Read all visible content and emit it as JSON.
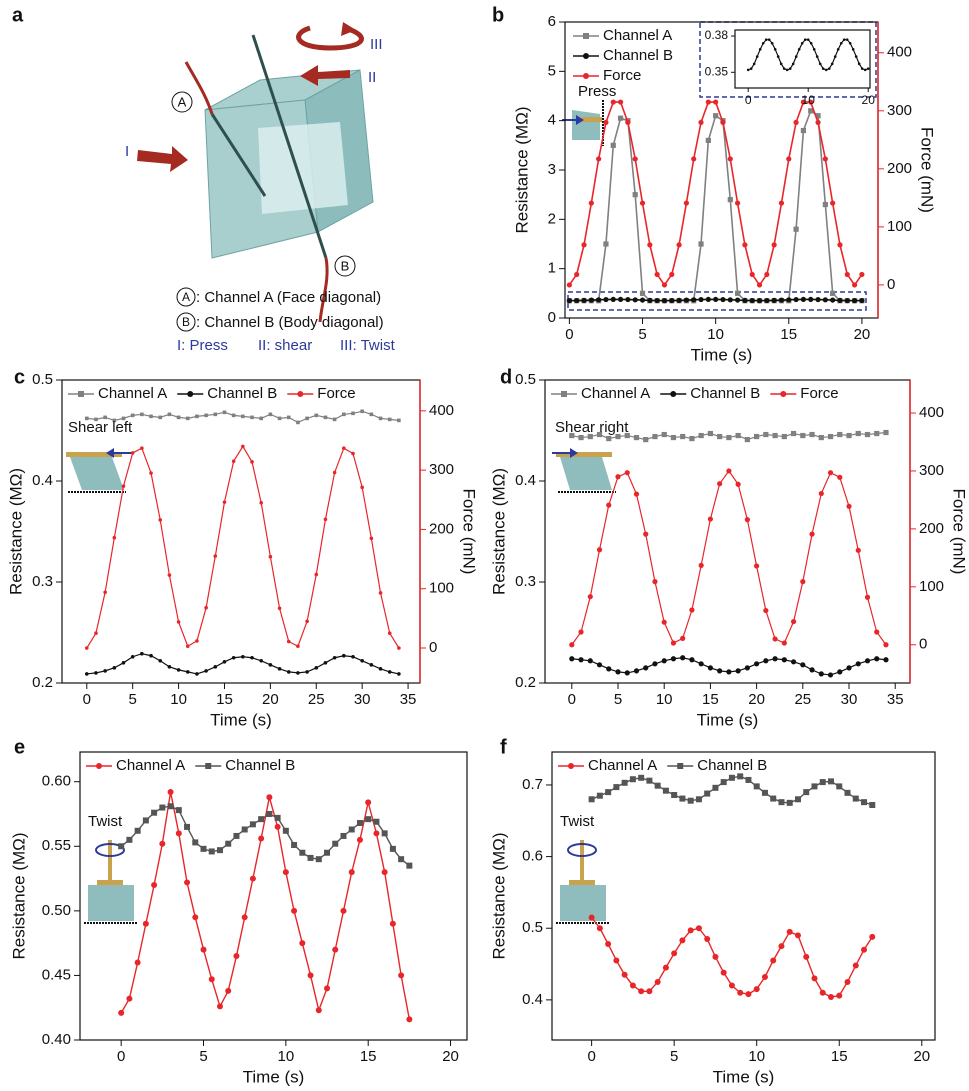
{
  "diagram": {
    "panel": "a",
    "arrows": [
      "I",
      "II",
      "III"
    ],
    "channels": [
      {
        "symbol": "A",
        "text": ": Channel A (Face diagonal)"
      },
      {
        "symbol": "B",
        "text": ": Channel B (Body diagonal)"
      }
    ],
    "modes": [
      "I: Press",
      "II: shear",
      "III: Twist"
    ]
  },
  "chart_data": [
    {
      "panel": "b",
      "type": "line",
      "xlabel": "Time (s)",
      "ylabel": "Resistance (MΩ)",
      "y2label": "Force (mN)",
      "annotation": "Press",
      "legend": "upper left",
      "xlim": [
        -0.3,
        21.1
      ],
      "ylim": [
        0,
        6
      ],
      "y2lim": [
        -57,
        453
      ],
      "xticks": [
        0,
        5,
        10,
        15,
        20
      ],
      "yticks": [
        0,
        1,
        2,
        3,
        4,
        5,
        6
      ],
      "y2ticks": [
        0,
        100,
        200,
        300,
        400
      ],
      "x": [
        0,
        0.5,
        1,
        1.5,
        2,
        2.5,
        3,
        3.5,
        4,
        4.5,
        5,
        5.5,
        6,
        6.5,
        7,
        7.5,
        8,
        8.5,
        9,
        9.5,
        10,
        10.5,
        11,
        11.5,
        12,
        12.5,
        13,
        13.5,
        14,
        14.5,
        15,
        15.5,
        16,
        16.5,
        17,
        17.5,
        18,
        18.5,
        19,
        19.5,
        20
      ],
      "series": [
        {
          "name": "Channel A",
          "color": "#808080",
          "marker": "square",
          "values": [
            0.35,
            0.35,
            0.35,
            0.35,
            0.35,
            1.5,
            3.5,
            4.05,
            4.0,
            2.5,
            0.5,
            0.35,
            0.35,
            0.35,
            0.35,
            0.35,
            0.35,
            0.35,
            1.5,
            3.6,
            4.1,
            4.0,
            2.4,
            0.5,
            0.35,
            0.35,
            0.35,
            0.35,
            0.35,
            0.35,
            0.35,
            1.8,
            3.8,
            4.2,
            4.1,
            2.3,
            0.5,
            0.35,
            0.35,
            0.35,
            0.35
          ]
        },
        {
          "name": "Channel B",
          "color": "#111111",
          "marker": "circle",
          "values": [
            0.352,
            0.353,
            0.357,
            0.363,
            0.369,
            0.374,
            0.377,
            0.377,
            0.374,
            0.369,
            0.363,
            0.357,
            0.353,
            0.352,
            0.353,
            0.357,
            0.363,
            0.369,
            0.374,
            0.377,
            0.377,
            0.374,
            0.369,
            0.363,
            0.357,
            0.353,
            0.352,
            0.353,
            0.357,
            0.363,
            0.369,
            0.374,
            0.377,
            0.377,
            0.374,
            0.369,
            0.363,
            0.357,
            0.353,
            0.352,
            0.353
          ]
        },
        {
          "name": "Force",
          "color": "#e8262a",
          "marker": "circle",
          "axis": "y2",
          "values": [
            0,
            18,
            69,
            141,
            217,
            280,
            315,
            315,
            280,
            217,
            141,
            69,
            18,
            0,
            18,
            69,
            141,
            217,
            280,
            315,
            315,
            280,
            217,
            141,
            69,
            18,
            0,
            18,
            69,
            141,
            217,
            280,
            315,
            315,
            280,
            217,
            141,
            69,
            18,
            0,
            18
          ]
        }
      ]
    },
    {
      "type": "line",
      "xlim": [
        -2.2,
        20.3
      ],
      "ylim": [
        0.337,
        0.385
      ],
      "xticks": [
        0,
        10,
        20
      ],
      "yticks": [
        0.35,
        0.38
      ],
      "x": [
        0,
        0.5,
        1,
        1.5,
        2,
        2.5,
        3,
        3.5,
        4,
        4.5,
        5,
        5.5,
        6,
        6.5,
        7,
        7.5,
        8,
        8.5,
        9,
        9.5,
        10,
        10.5,
        11,
        11.5,
        12,
        12.5,
        13,
        13.5,
        14,
        14.5,
        15,
        15.5,
        16,
        16.5,
        17,
        17.5,
        18,
        18.5,
        19,
        19.5,
        20
      ],
      "series": [
        {
          "color": "#111111",
          "marker": "circle",
          "values": [
            0.352,
            0.353,
            0.357,
            0.363,
            0.369,
            0.374,
            0.377,
            0.377,
            0.374,
            0.369,
            0.363,
            0.357,
            0.353,
            0.352,
            0.353,
            0.357,
            0.363,
            0.369,
            0.374,
            0.377,
            0.377,
            0.374,
            0.369,
            0.363,
            0.357,
            0.353,
            0.352,
            0.353,
            0.357,
            0.363,
            0.369,
            0.374,
            0.377,
            0.377,
            0.374,
            0.369,
            0.363,
            0.357,
            0.353,
            0.352,
            0.353
          ]
        }
      ]
    },
    {
      "panel": "c",
      "type": "line",
      "xlabel": "Time (s)",
      "ylabel": "Resistance (MΩ)",
      "y2label": "Force (mN)",
      "annotation": "Shear left",
      "legend": "top",
      "xlim": [
        -2.7,
        36.3
      ],
      "ylim": [
        0.2,
        0.5
      ],
      "y2lim": [
        -59,
        452
      ],
      "xticks": [
        0,
        5,
        10,
        15,
        20,
        25,
        30,
        35
      ],
      "yticks": [
        0.2,
        0.3,
        0.4,
        0.5
      ],
      "y2ticks": [
        0,
        100,
        200,
        300,
        400
      ],
      "x": [
        0,
        1,
        2,
        3,
        4,
        5,
        6,
        7,
        8,
        9,
        10,
        11,
        12,
        13,
        14,
        15,
        16,
        17,
        18,
        19,
        20,
        21,
        22,
        23,
        24,
        25,
        26,
        27,
        28,
        29,
        30,
        31,
        32,
        33,
        34
      ],
      "series": [
        {
          "name": "Channel A",
          "color": "#808080",
          "marker": "square",
          "values": [
            0.462,
            0.461,
            0.463,
            0.46,
            0.462,
            0.465,
            0.466,
            0.464,
            0.463,
            0.466,
            0.463,
            0.462,
            0.464,
            0.465,
            0.466,
            0.468,
            0.465,
            0.464,
            0.463,
            0.462,
            0.466,
            0.462,
            0.463,
            0.458,
            0.462,
            0.465,
            0.463,
            0.461,
            0.466,
            0.467,
            0.469,
            0.466,
            0.462,
            0.461,
            0.46
          ]
        },
        {
          "name": "Channel B",
          "color": "#111111",
          "marker": "circle",
          "values": [
            0.209,
            0.21,
            0.212,
            0.215,
            0.22,
            0.226,
            0.229,
            0.227,
            0.222,
            0.216,
            0.213,
            0.211,
            0.209,
            0.212,
            0.216,
            0.221,
            0.225,
            0.226,
            0.225,
            0.222,
            0.218,
            0.214,
            0.211,
            0.21,
            0.211,
            0.215,
            0.22,
            0.225,
            0.227,
            0.226,
            0.222,
            0.218,
            0.214,
            0.211,
            0.209
          ]
        },
        {
          "name": "Force",
          "color": "#e8262a",
          "marker": "circle",
          "axis": "y2",
          "values": [
            0,
            25,
            94,
            186,
            273,
            329,
            337,
            295,
            216,
            123,
            44,
            3,
            12,
            68,
            155,
            246,
            315,
            340,
            314,
            245,
            154,
            67,
            11,
            3,
            45,
            124,
            217,
            296,
            337,
            328,
            271,
            185,
            93,
            25,
            0
          ]
        }
      ]
    },
    {
      "panel": "d",
      "type": "line",
      "xlabel": "Time (s)",
      "ylabel": "Resistance (MΩ)",
      "y2label": "Force (mN)",
      "annotation": "Shear right",
      "legend": "top",
      "xlim": [
        -2.9,
        36.6
      ],
      "ylim": [
        0.2,
        0.5
      ],
      "y2lim": [
        -66,
        457
      ],
      "xticks": [
        0,
        5,
        10,
        15,
        20,
        25,
        30,
        35
      ],
      "yticks": [
        0.2,
        0.3,
        0.4,
        0.5
      ],
      "y2ticks": [
        0,
        100,
        200,
        300,
        400
      ],
      "x": [
        0,
        1,
        2,
        3,
        4,
        5,
        6,
        7,
        8,
        9,
        10,
        11,
        12,
        13,
        14,
        15,
        16,
        17,
        18,
        19,
        20,
        21,
        22,
        23,
        24,
        25,
        26,
        27,
        28,
        29,
        30,
        31,
        32,
        33,
        34
      ],
      "series": [
        {
          "name": "Channel A",
          "color": "#808080",
          "marker": "square",
          "values": [
            0.445,
            0.443,
            0.444,
            0.446,
            0.442,
            0.444,
            0.445,
            0.443,
            0.441,
            0.444,
            0.446,
            0.443,
            0.444,
            0.442,
            0.445,
            0.447,
            0.444,
            0.443,
            0.445,
            0.441,
            0.444,
            0.446,
            0.445,
            0.444,
            0.447,
            0.445,
            0.446,
            0.443,
            0.444,
            0.446,
            0.445,
            0.447,
            0.446,
            0.447,
            0.448
          ]
        },
        {
          "name": "Channel B",
          "color": "#111111",
          "marker": "circle",
          "values": [
            0.224,
            0.223,
            0.222,
            0.218,
            0.214,
            0.211,
            0.21,
            0.212,
            0.215,
            0.219,
            0.222,
            0.224,
            0.225,
            0.223,
            0.219,
            0.215,
            0.212,
            0.211,
            0.212,
            0.215,
            0.219,
            0.222,
            0.224,
            0.223,
            0.221,
            0.218,
            0.213,
            0.209,
            0.208,
            0.211,
            0.215,
            0.219,
            0.222,
            0.224,
            0.223
          ]
        },
        {
          "name": "Force",
          "color": "#e8262a",
          "marker": "circle",
          "axis": "y2",
          "values": [
            0,
            22,
            83,
            164,
            241,
            290,
            297,
            260,
            191,
            109,
            39,
            3,
            11,
            60,
            137,
            217,
            278,
            300,
            277,
            216,
            136,
            59,
            10,
            3,
            40,
            109,
            191,
            261,
            297,
            289,
            239,
            163,
            82,
            22,
            0
          ]
        }
      ]
    },
    {
      "panel": "e",
      "type": "line",
      "xlabel": "Time (s)",
      "ylabel": "Resistance (MΩ)",
      "annotation": "Twist",
      "legend": "top",
      "xlim": [
        -2.5,
        21
      ],
      "ylim": [
        0.4,
        0.623
      ],
      "xticks": [
        0,
        5,
        10,
        15,
        20
      ],
      "yticks": [
        {
          "value": 0.4,
          "label": "0.40"
        },
        0.45,
        {
          "value": 0.5,
          "label": "0.50"
        },
        0.55,
        {
          "value": 0.6,
          "label": "0.60"
        }
      ],
      "x": [
        0,
        0.5,
        1,
        1.5,
        2,
        2.5,
        3,
        3.5,
        4,
        4.5,
        5,
        5.5,
        6,
        6.5,
        7,
        7.5,
        8,
        8.5,
        9,
        9.5,
        10,
        10.5,
        11,
        11.5,
        12,
        12.5,
        13,
        13.5,
        14,
        14.5,
        15,
        15.5,
        16,
        16.5,
        17,
        17.5
      ],
      "series": [
        {
          "name": "Channel A",
          "color": "#e8262a",
          "marker": "circle",
          "values": [
            0.421,
            0.432,
            0.46,
            0.49,
            0.52,
            0.552,
            0.592,
            0.56,
            0.522,
            0.495,
            0.47,
            0.447,
            0.426,
            0.438,
            0.465,
            0.495,
            0.525,
            0.556,
            0.588,
            0.565,
            0.53,
            0.5,
            0.475,
            0.45,
            0.423,
            0.44,
            0.47,
            0.5,
            0.53,
            0.555,
            0.584,
            0.56,
            0.53,
            0.49,
            0.45,
            0.416
          ]
        },
        {
          "name": "Channel B",
          "color": "#555555",
          "marker": "square",
          "values": [
            0.55,
            0.555,
            0.562,
            0.57,
            0.576,
            0.58,
            0.581,
            0.578,
            0.565,
            0.553,
            0.548,
            0.546,
            0.547,
            0.552,
            0.558,
            0.563,
            0.567,
            0.571,
            0.575,
            0.572,
            0.562,
            0.551,
            0.545,
            0.541,
            0.54,
            0.545,
            0.552,
            0.558,
            0.563,
            0.568,
            0.571,
            0.569,
            0.56,
            0.548,
            0.54,
            0.535
          ]
        }
      ]
    },
    {
      "panel": "f",
      "type": "line",
      "xlabel": "Time (s)",
      "ylabel": "Resistance (MΩ)",
      "annotation": "Twist",
      "legend": "top",
      "xlim": [
        -2.4,
        20.8
      ],
      "ylim": [
        0.344,
        0.746
      ],
      "xticks": [
        0,
        5,
        10,
        15,
        20
      ],
      "yticks": [
        0.4,
        0.5,
        0.6,
        0.7
      ],
      "x": [
        0,
        0.5,
        1,
        1.5,
        2,
        2.5,
        3,
        3.5,
        4,
        4.5,
        5,
        5.5,
        6,
        6.5,
        7,
        7.5,
        8,
        8.5,
        9,
        9.5,
        10,
        10.5,
        11,
        11.5,
        12,
        12.5,
        13,
        13.5,
        14,
        14.5,
        15,
        15.5,
        16,
        16.5,
        17
      ],
      "series": [
        {
          "name": "Channel A",
          "color": "#e8262a",
          "marker": "circle",
          "values": [
            0.515,
            0.5,
            0.478,
            0.455,
            0.435,
            0.42,
            0.412,
            0.412,
            0.425,
            0.445,
            0.465,
            0.483,
            0.497,
            0.5,
            0.485,
            0.46,
            0.438,
            0.42,
            0.41,
            0.408,
            0.415,
            0.432,
            0.455,
            0.475,
            0.495,
            0.49,
            0.46,
            0.43,
            0.41,
            0.404,
            0.406,
            0.425,
            0.448,
            0.47,
            0.488
          ]
        },
        {
          "name": "Channel B",
          "color": "#555555",
          "marker": "square",
          "values": [
            0.68,
            0.685,
            0.69,
            0.697,
            0.703,
            0.708,
            0.71,
            0.706,
            0.699,
            0.692,
            0.686,
            0.681,
            0.678,
            0.68,
            0.688,
            0.696,
            0.704,
            0.71,
            0.712,
            0.707,
            0.698,
            0.689,
            0.681,
            0.676,
            0.675,
            0.68,
            0.69,
            0.698,
            0.704,
            0.705,
            0.698,
            0.689,
            0.681,
            0.676,
            0.672
          ]
        }
      ]
    }
  ]
}
